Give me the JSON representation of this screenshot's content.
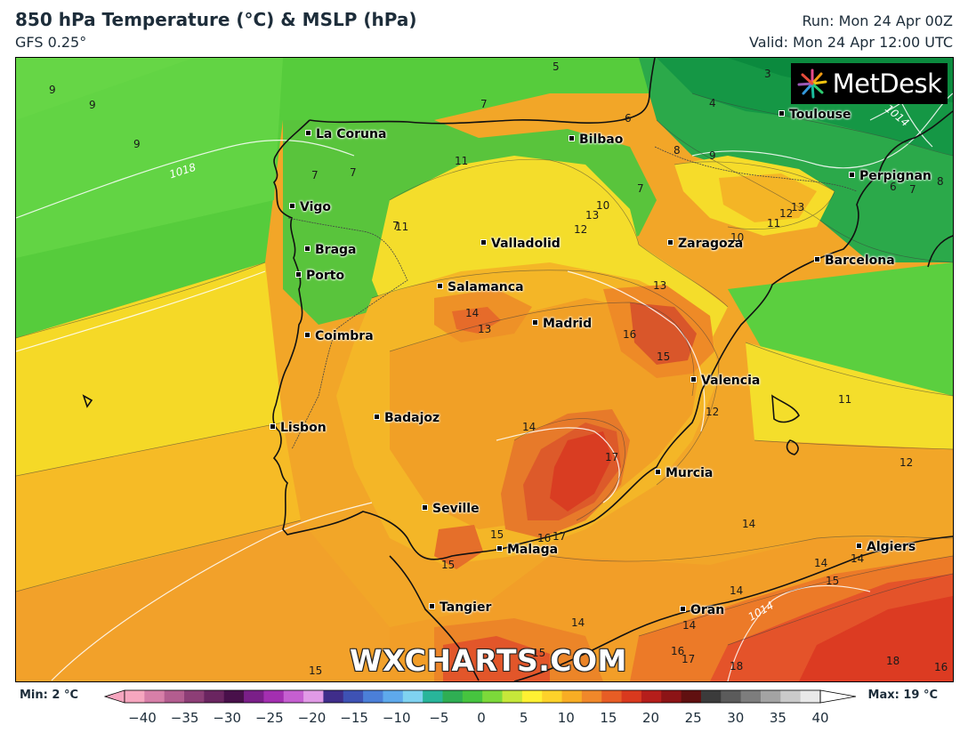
{
  "header": {
    "title": "850 hPa Temperature (°C) & MSLP (hPa)",
    "model": "GFS 0.25°",
    "run": "Run: Mon 24 Apr 00Z",
    "valid": "Valid: Mon 24 Apr 12:00 UTC"
  },
  "logo": {
    "text": "MetDesk"
  },
  "watermark": "WXCHARTS.COM",
  "cities": [
    "La Coruna",
    "Bilbao",
    "Toulouse",
    "Perpignan",
    "Vigo",
    "Braga",
    "Porto",
    "Valladolid",
    "Zaragoza",
    "Barcelona",
    "Salamanca",
    "Madrid",
    "Coimbra",
    "Valencia",
    "Lisbon",
    "Badajoz",
    "Murcia",
    "Seville",
    "Malaga",
    "Algiers",
    "Tangier",
    "Oran"
  ],
  "temperature_labels": [
    "9",
    "9",
    "9",
    "5",
    "7",
    "3",
    "4",
    "6",
    "7",
    "7",
    "11",
    "8",
    "9",
    "7",
    "6",
    "7",
    "8",
    "7",
    "11",
    "13",
    "12",
    "10",
    "13",
    "12",
    "11",
    "10",
    "11",
    "13",
    "14",
    "13",
    "16",
    "15",
    "12",
    "11",
    "12",
    "14",
    "17",
    "15",
    "16",
    "17",
    "15",
    "14",
    "14",
    "14",
    "15",
    "14",
    "14",
    "14",
    "16",
    "17",
    "18",
    "18",
    "16",
    "15",
    "15"
  ],
  "isobar_labels": [
    "1018",
    "1014",
    "1014"
  ],
  "legend": {
    "min_label": "Min: 2 °C",
    "max_label": "Max: 19 °C",
    "ticks": [
      "−40",
      "−35",
      "−30",
      "−25",
      "−20",
      "−15",
      "−10",
      "−5",
      "0",
      "5",
      "10",
      "15",
      "20",
      "25",
      "30",
      "35",
      "40"
    ],
    "scale_colors": [
      "#f6a6bf",
      "#d77fa8",
      "#b35d8f",
      "#8d3e76",
      "#6a2560",
      "#48104a",
      "#7a1f88",
      "#a32fb0",
      "#c55fd0",
      "#e19ae6",
      "#3f2d8a",
      "#3e52b4",
      "#4b7fd8",
      "#5ea9ec",
      "#7fd2f0",
      "#28b59a",
      "#2fae53",
      "#46c43f",
      "#7cd93a",
      "#c6e73a",
      "#fff133",
      "#fdd22a",
      "#f8ad24",
      "#f0882a",
      "#e75d25",
      "#d9391e",
      "#b51e1b",
      "#8c1416",
      "#601010",
      "#3b3b3b",
      "#5b5b5b",
      "#7d7d7d",
      "#a3a3a3",
      "#cacaca",
      "#e9e9e9"
    ]
  }
}
